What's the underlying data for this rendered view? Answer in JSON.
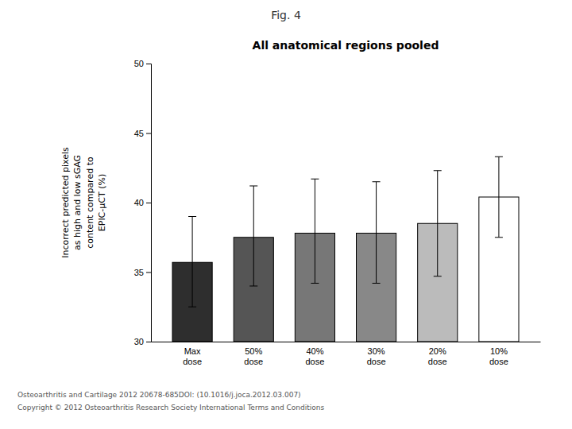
{
  "chart_data": {
    "type": "bar",
    "title": "All anatomical regions pooled",
    "subtitle": "Fig. 4",
    "categories": [
      "Max\ndose",
      "50%\ndose",
      "40%\ndose",
      "30%\ndose",
      "20%\ndose",
      "10%\ndose"
    ],
    "values": [
      35.7,
      37.5,
      37.8,
      37.8,
      38.5,
      40.4
    ],
    "error_lower": [
      32.5,
      34.0,
      34.2,
      34.2,
      34.7,
      37.5
    ],
    "error_upper": [
      39.0,
      41.2,
      41.7,
      41.5,
      42.3,
      43.3
    ],
    "colors": [
      "#2e2e2e",
      "#555555",
      "#777777",
      "#888888",
      "#bbbbbb",
      "#ffffff"
    ],
    "ylabel": "Incorrect predicted pixels\nas high and low sGAG\ncontent compared to\nEPIC-μCT (%)",
    "ylim": [
      30,
      50
    ],
    "yticks": [
      30,
      35,
      40,
      45,
      50
    ],
    "grid": false,
    "annotations": [
      "Osteoarthritis and Cartilage 2012 20678-685DOI: (10.1016/j.joca.2012.03.007)",
      "Copyright © 2012 Osteoarthritis Research Society International Terms and Conditions"
    ]
  }
}
